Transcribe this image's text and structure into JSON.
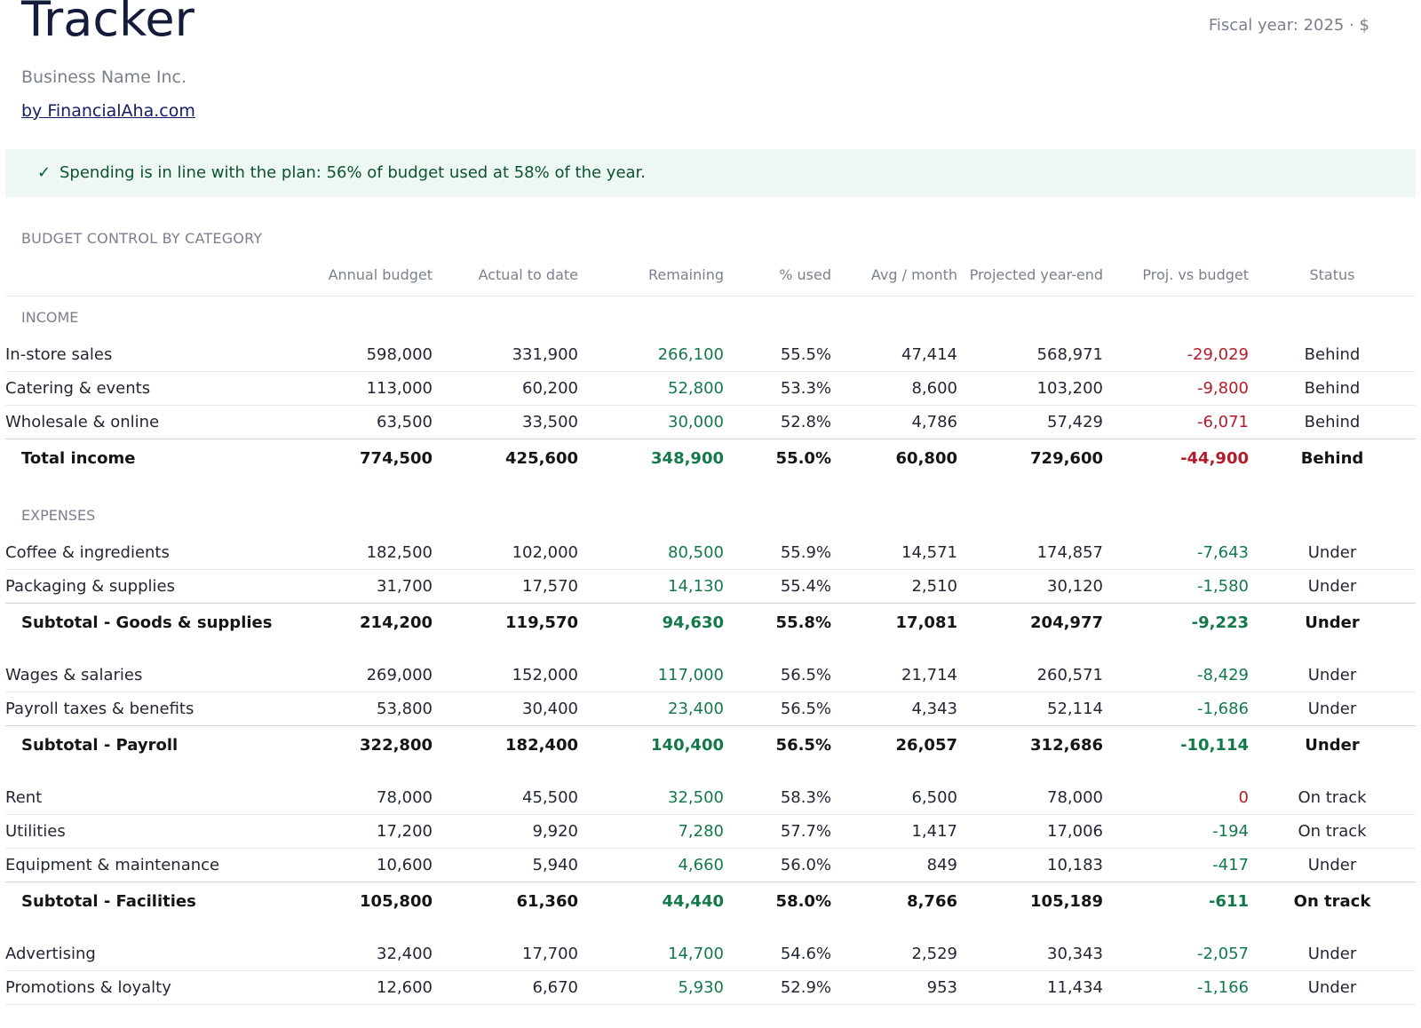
{
  "header": {
    "title": "Tracker",
    "fiscal": "Fiscal year: 2025 · $",
    "business_name": "Business Name Inc.",
    "link_text": "by FinancialAha.com"
  },
  "banner": {
    "check": "✓",
    "message": "Spending is in line with the plan: 56% of budget used at 58% of the year."
  },
  "section_title": "BUDGET CONTROL BY CATEGORY",
  "columns": [
    "",
    "Annual budget",
    "Actual to date",
    "Remaining",
    "% used",
    "Avg / month",
    "Projected year-end",
    "Proj. vs budget",
    "Status"
  ],
  "colors": {
    "positive": "#13794a",
    "negative": "#b21d2a",
    "banner_bg": "#eef8f2"
  },
  "rows": [
    {
      "kind": "group",
      "label": "INCOME"
    },
    {
      "kind": "item",
      "label": "In-store sales",
      "cells": [
        "598,000",
        "331,900",
        "266,100",
        "55.5%",
        "47,414",
        "568,971",
        "-29,029",
        "Behind"
      ],
      "tone": "neg"
    },
    {
      "kind": "item",
      "label": "Catering & events",
      "cells": [
        "113,000",
        "60,200",
        "52,800",
        "53.3%",
        "8,600",
        "103,200",
        "-9,800",
        "Behind"
      ],
      "tone": "neg"
    },
    {
      "kind": "item",
      "label": "Wholesale & online",
      "cells": [
        "63,500",
        "33,500",
        "30,000",
        "52.8%",
        "4,786",
        "57,429",
        "-6,071",
        "Behind"
      ],
      "tone": "neg",
      "last": true
    },
    {
      "kind": "total",
      "label": "Total income",
      "cells": [
        "774,500",
        "425,600",
        "348,900",
        "55.0%",
        "60,800",
        "729,600",
        "-44,900",
        "Behind"
      ],
      "tone": "neg"
    },
    {
      "kind": "gap"
    },
    {
      "kind": "group",
      "label": "EXPENSES"
    },
    {
      "kind": "item",
      "label": "Coffee & ingredients",
      "cells": [
        "182,500",
        "102,000",
        "80,500",
        "55.9%",
        "14,571",
        "174,857",
        "-7,643",
        "Under"
      ],
      "tone": "pos"
    },
    {
      "kind": "item",
      "label": "Packaging & supplies",
      "cells": [
        "31,700",
        "17,570",
        "14,130",
        "55.4%",
        "2,510",
        "30,120",
        "-1,580",
        "Under"
      ],
      "tone": "pos",
      "last": true
    },
    {
      "kind": "total",
      "label": "Subtotal - Goods & supplies",
      "cells": [
        "214,200",
        "119,570",
        "94,630",
        "55.8%",
        "17,081",
        "204,977",
        "-9,223",
        "Under"
      ],
      "tone": "pos"
    },
    {
      "kind": "spacer"
    },
    {
      "kind": "item",
      "label": "Wages & salaries",
      "cells": [
        "269,000",
        "152,000",
        "117,000",
        "56.5%",
        "21,714",
        "260,571",
        "-8,429",
        "Under"
      ],
      "tone": "pos"
    },
    {
      "kind": "item",
      "label": "Payroll taxes & benefits",
      "cells": [
        "53,800",
        "30,400",
        "23,400",
        "56.5%",
        "4,343",
        "52,114",
        "-1,686",
        "Under"
      ],
      "tone": "pos",
      "last": true
    },
    {
      "kind": "total",
      "label": "Subtotal - Payroll",
      "cells": [
        "322,800",
        "182,400",
        "140,400",
        "56.5%",
        "26,057",
        "312,686",
        "-10,114",
        "Under"
      ],
      "tone": "pos"
    },
    {
      "kind": "spacer"
    },
    {
      "kind": "item",
      "label": "Rent",
      "cells": [
        "78,000",
        "45,500",
        "32,500",
        "58.3%",
        "6,500",
        "78,000",
        "0",
        "On track"
      ],
      "tone": "neg"
    },
    {
      "kind": "item",
      "label": "Utilities",
      "cells": [
        "17,200",
        "9,920",
        "7,280",
        "57.7%",
        "1,417",
        "17,006",
        "-194",
        "On track"
      ],
      "tone": "pos"
    },
    {
      "kind": "item",
      "label": "Equipment & maintenance",
      "cells": [
        "10,600",
        "5,940",
        "4,660",
        "56.0%",
        "849",
        "10,183",
        "-417",
        "Under"
      ],
      "tone": "pos",
      "last": true
    },
    {
      "kind": "total",
      "label": "Subtotal - Facilities",
      "cells": [
        "105,800",
        "61,360",
        "44,440",
        "58.0%",
        "8,766",
        "105,189",
        "-611",
        "On track"
      ],
      "tone": "pos"
    },
    {
      "kind": "spacer"
    },
    {
      "kind": "item",
      "label": "Advertising",
      "cells": [
        "32,400",
        "17,700",
        "14,700",
        "54.6%",
        "2,529",
        "30,343",
        "-2,057",
        "Under"
      ],
      "tone": "pos"
    },
    {
      "kind": "item",
      "label": "Promotions & loyalty",
      "cells": [
        "12,600",
        "6,670",
        "5,930",
        "52.9%",
        "953",
        "11,434",
        "-1,166",
        "Under"
      ],
      "tone": "pos"
    }
  ]
}
